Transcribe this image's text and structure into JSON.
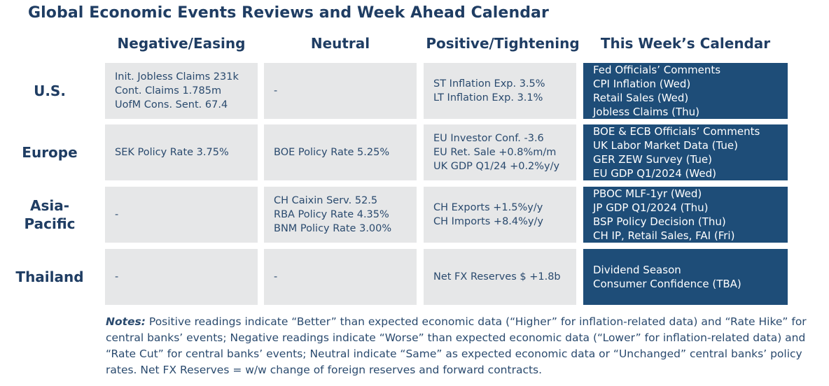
{
  "title": "Global Economic Events Reviews and Week Ahead Calendar",
  "columns": [
    "Negative/Easing",
    "Neutral",
    "Positive/Tightening",
    "This Week’s Calendar"
  ],
  "rows": [
    {
      "label": "U.S.",
      "negative": [
        "Init. Jobless Claims 231k",
        "Cont. Claims 1.785m",
        "UofM Cons. Sent. 67.4"
      ],
      "neutral": [
        "-"
      ],
      "positive": [
        "ST Inflation Exp. 3.5%",
        "LT Inflation Exp. 3.1%"
      ],
      "calendar": [
        "Fed Officials’ Comments",
        "CPI Inflation (Wed)",
        "Retail Sales (Wed)",
        "Jobless Claims (Thu)"
      ]
    },
    {
      "label": "Europe",
      "negative": [
        "SEK Policy Rate 3.75%"
      ],
      "neutral": [
        "BOE Policy Rate 5.25%"
      ],
      "positive": [
        "EU Investor Conf. -3.6",
        "EU Ret. Sale +0.8%m/m",
        "UK GDP Q1/24 +0.2%y/y"
      ],
      "calendar": [
        "BOE & ECB Officials’ Comments",
        "UK Labor Market Data (Tue)",
        "GER ZEW Survey (Tue)",
        "EU GDP Q1/2024 (Wed)"
      ]
    },
    {
      "label": "Asia-Pacific",
      "label_lines": [
        "Asia-",
        "Pacific"
      ],
      "negative": [
        "-"
      ],
      "neutral": [
        "CH Caixin Serv. 52.5",
        "RBA Policy Rate 4.35%",
        "BNM Policy Rate 3.00%"
      ],
      "positive": [
        "CH Exports +1.5%y/y",
        "CH Imports +8.4%y/y"
      ],
      "calendar": [
        "PBOC MLF-1yr (Wed)",
        "JP GDP Q1/2024 (Thu)",
        "BSP Policy Decision (Thu)",
        "CH IP, Retail Sales, FAI (Fri)"
      ]
    },
    {
      "label": "Thailand",
      "negative": [
        "-"
      ],
      "neutral": [
        "-"
      ],
      "positive": [
        "Net FX Reserves $ +1.8b"
      ],
      "calendar": [
        "Dividend Season",
        "Consumer Confidence (TBA)"
      ]
    }
  ],
  "notes": {
    "label": "Notes:",
    "text": " Positive readings indicate “Better” than expected economic data (“Higher” for inflation-related data) and “Rate Hike” for central banks’ events; Negative readings indicate “Worse” than expected economic data (“Lower” for inflation-related data) and “Rate Cut” for central banks’ events; Neutral indicate “Same” as expected economic data or “Unchanged” central banks’ policy rates. Net FX Reserves = w/w change of foreign reserves and forward contracts."
  },
  "colors": {
    "title": "#1f3d63",
    "cell_bg": "#e6e7e8",
    "calendar_bg": "#1e4d78",
    "calendar_text": "#ffffff"
  }
}
